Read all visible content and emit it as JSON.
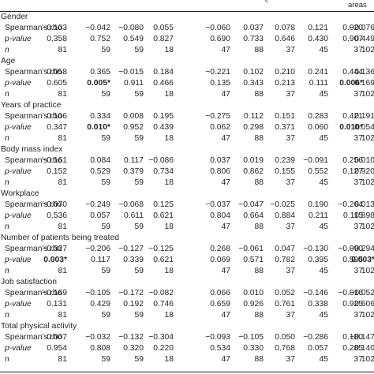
{
  "header": {
    "partial_fragment": "ε",
    "last_column_label": "areas"
  },
  "sections": [
    {
      "title": "Gender",
      "rows": [
        {
          "label": "Spearman's rho",
          "italic": false,
          "cells": [
            {
              "v": "−0.103"
            },
            {
              "v": "−0.042"
            },
            {
              "v": "−0.080"
            },
            {
              "v": "0.055"
            },
            {
              "v": "−0.060"
            },
            {
              "v": "0.037"
            },
            {
              "v": "0.078"
            },
            {
              "v": "0.121"
            },
            {
              "v": "0.020"
            },
            {
              "v": "−0.076"
            }
          ]
        },
        {
          "label": "p-value",
          "italic": true,
          "cells": [
            {
              "v": "0.358"
            },
            {
              "v": "0.752"
            },
            {
              "v": "0.549"
            },
            {
              "v": "0.827"
            },
            {
              "v": "0.690"
            },
            {
              "v": "0.733"
            },
            {
              "v": "0.646"
            },
            {
              "v": "0.430"
            },
            {
              "v": "0.907"
            },
            {
              "v": "0.449"
            }
          ]
        },
        {
          "label": "n",
          "italic": true,
          "cells": [
            {
              "v": "81"
            },
            {
              "v": "59"
            },
            {
              "v": "59"
            },
            {
              "v": "18"
            },
            {
              "v": "47"
            },
            {
              "v": "88"
            },
            {
              "v": "37"
            },
            {
              "v": "45"
            },
            {
              "v": "37"
            },
            {
              "v": "102"
            }
          ]
        }
      ]
    },
    {
      "title": "Age",
      "rows": [
        {
          "label": "Spearman's rho",
          "italic": false,
          "cells": [
            {
              "v": "0.058"
            },
            {
              "v": "0.365"
            },
            {
              "v": "−0.015"
            },
            {
              "v": "0.184"
            },
            {
              "v": "−0.221"
            },
            {
              "v": "0.102"
            },
            {
              "v": "0.210"
            },
            {
              "v": "0.241"
            },
            {
              "v": "0.444"
            },
            {
              "v": "0.136"
            }
          ]
        },
        {
          "label": "p-value",
          "italic": true,
          "cells": [
            {
              "v": "0.605"
            },
            {
              "v": "0.005*",
              "b": true
            },
            {
              "v": "0.911"
            },
            {
              "v": "0.466"
            },
            {
              "v": "0.135"
            },
            {
              "v": "0.343"
            },
            {
              "v": "0.213"
            },
            {
              "v": "0.111"
            },
            {
              "v": "0.006*",
              "b": true
            },
            {
              "v": "0.169"
            }
          ]
        },
        {
          "label": "n",
          "italic": true,
          "cells": [
            {
              "v": "81"
            },
            {
              "v": "59"
            },
            {
              "v": "59"
            },
            {
              "v": "18"
            },
            {
              "v": "47"
            },
            {
              "v": "88"
            },
            {
              "v": "37"
            },
            {
              "v": "45"
            },
            {
              "v": "37"
            },
            {
              "v": "102"
            }
          ]
        }
      ]
    },
    {
      "title": "Years of practice",
      "rows": [
        {
          "label": "Spearman's rho",
          "italic": false,
          "cells": [
            {
              "v": "0.106"
            },
            {
              "v": "0.334"
            },
            {
              "v": "0.008"
            },
            {
              "v": "0.195"
            },
            {
              "v": "−0.275"
            },
            {
              "v": "0.112"
            },
            {
              "v": "0.151"
            },
            {
              "v": "0.283"
            },
            {
              "v": "0.421"
            },
            {
              "v": "0.191"
            }
          ]
        },
        {
          "label": "p-value",
          "italic": true,
          "cells": [
            {
              "v": "0.347"
            },
            {
              "v": "0.010*",
              "b": true
            },
            {
              "v": "0.952"
            },
            {
              "v": "0.439"
            },
            {
              "v": "0.062"
            },
            {
              "v": "0.298"
            },
            {
              "v": "0.371"
            },
            {
              "v": "0.060"
            },
            {
              "v": "0.010*",
              "b": true
            },
            {
              "v": "0.054"
            }
          ]
        },
        {
          "label": "n",
          "italic": true,
          "cells": [
            {
              "v": "81"
            },
            {
              "v": "59"
            },
            {
              "v": "59"
            },
            {
              "v": "18"
            },
            {
              "v": "47"
            },
            {
              "v": "88"
            },
            {
              "v": "37"
            },
            {
              "v": "45"
            },
            {
              "v": "37"
            },
            {
              "v": "102"
            }
          ]
        }
      ]
    },
    {
      "title": "Body mass index",
      "rows": [
        {
          "label": "Spearman's rho",
          "italic": false,
          "cells": [
            {
              "v": "−0.161"
            },
            {
              "v": "0.084"
            },
            {
              "v": "0.117"
            },
            {
              "v": "−0.086"
            },
            {
              "v": "0.037"
            },
            {
              "v": "0.019"
            },
            {
              "v": "0.239"
            },
            {
              "v": "−0.091"
            },
            {
              "v": "0.256"
            },
            {
              "v": "0.010"
            }
          ]
        },
        {
          "label": "p-value",
          "italic": true,
          "cells": [
            {
              "v": "0.152"
            },
            {
              "v": "0.529"
            },
            {
              "v": "0.379"
            },
            {
              "v": "0.734"
            },
            {
              "v": "0.806"
            },
            {
              "v": "0.862"
            },
            {
              "v": "0.155"
            },
            {
              "v": "0.552"
            },
            {
              "v": "0.127"
            },
            {
              "v": "0.920"
            }
          ]
        },
        {
          "label": "n",
          "italic": true,
          "cells": [
            {
              "v": "81"
            },
            {
              "v": "59"
            },
            {
              "v": "59"
            },
            {
              "v": "18"
            },
            {
              "v": "47"
            },
            {
              "v": "88"
            },
            {
              "v": "37"
            },
            {
              "v": "45"
            },
            {
              "v": "37"
            },
            {
              "v": "102"
            }
          ]
        }
      ]
    },
    {
      "title": "Workplace",
      "rows": [
        {
          "label": "Spearman's rho",
          "italic": false,
          "cells": [
            {
              "v": "−0.070"
            },
            {
              "v": "−0.249"
            },
            {
              "v": "−0.068"
            },
            {
              "v": "0.125"
            },
            {
              "v": "−0.037"
            },
            {
              "v": "−0.047"
            },
            {
              "v": "−0.025"
            },
            {
              "v": "0.190"
            },
            {
              "v": "−0.264"
            },
            {
              "v": "0.013"
            }
          ]
        },
        {
          "label": "p-value",
          "italic": true,
          "cells": [
            {
              "v": "0.536"
            },
            {
              "v": "0.057"
            },
            {
              "v": "0.611"
            },
            {
              "v": "0.621"
            },
            {
              "v": "0.804"
            },
            {
              "v": "0.664"
            },
            {
              "v": "0.884"
            },
            {
              "v": "0.211"
            },
            {
              "v": "0.115"
            },
            {
              "v": "0.898"
            }
          ]
        },
        {
          "label": "n",
          "italic": true,
          "cells": [
            {
              "v": "81"
            },
            {
              "v": "59"
            },
            {
              "v": "59"
            },
            {
              "v": "18"
            },
            {
              "v": "47"
            },
            {
              "v": "88"
            },
            {
              "v": "37"
            },
            {
              "v": "45"
            },
            {
              "v": "37"
            },
            {
              "v": "102"
            }
          ]
        }
      ]
    },
    {
      "title": "Number of patients being treated",
      "rows": [
        {
          "label": "Spearman's rho",
          "italic": false,
          "cells": [
            {
              "v": "−0.327"
            },
            {
              "v": "−0.206"
            },
            {
              "v": "−0.127"
            },
            {
              "v": "−0.125"
            },
            {
              "v": "0.268"
            },
            {
              "v": "−0.061"
            },
            {
              "v": "0.047"
            },
            {
              "v": "−0.130"
            },
            {
              "v": "−0.090"
            },
            {
              "v": "−0.294"
            }
          ]
        },
        {
          "label": "p-value",
          "italic": true,
          "cells": [
            {
              "v": "0.003*",
              "b": true
            },
            {
              "v": "0.117"
            },
            {
              "v": "0.339"
            },
            {
              "v": "0.621"
            },
            {
              "v": "0.069"
            },
            {
              "v": "0.571"
            },
            {
              "v": "0.782"
            },
            {
              "v": "0.395"
            },
            {
              "v": "0.595"
            },
            {
              "v": "0.003*",
              "b": true
            }
          ]
        },
        {
          "label": "n",
          "italic": true,
          "cells": [
            {
              "v": "81"
            },
            {
              "v": "59"
            },
            {
              "v": "59"
            },
            {
              "v": "18"
            },
            {
              "v": "47"
            },
            {
              "v": "88"
            },
            {
              "v": "37"
            },
            {
              "v": "45"
            },
            {
              "v": "37"
            },
            {
              "v": "102"
            }
          ]
        }
      ]
    },
    {
      "title": "Job satisfaction",
      "rows": [
        {
          "label": "Spearman's rho",
          "italic": false,
          "cells": [
            {
              "v": "−0.169"
            },
            {
              "v": "−0.105"
            },
            {
              "v": "−0.172"
            },
            {
              "v": "−0.082"
            },
            {
              "v": "0.066"
            },
            {
              "v": "0.010"
            },
            {
              "v": "0.052"
            },
            {
              "v": "−0.146"
            },
            {
              "v": "−0.016"
            },
            {
              "v": "−0.052"
            }
          ]
        },
        {
          "label": "p-value",
          "italic": true,
          "cells": [
            {
              "v": "0.131"
            },
            {
              "v": "0.429"
            },
            {
              "v": "0.192"
            },
            {
              "v": "0.746"
            },
            {
              "v": "0.659"
            },
            {
              "v": "0.926"
            },
            {
              "v": "0.761"
            },
            {
              "v": "0.338"
            },
            {
              "v": "0.925"
            },
            {
              "v": "0.606"
            }
          ]
        },
        {
          "label": "n",
          "italic": true,
          "cells": [
            {
              "v": "81"
            },
            {
              "v": "59"
            },
            {
              "v": "59"
            },
            {
              "v": "18"
            },
            {
              "v": "47"
            },
            {
              "v": "88"
            },
            {
              "v": "37"
            },
            {
              "v": "45"
            },
            {
              "v": "37"
            },
            {
              "v": "102"
            }
          ]
        }
      ]
    },
    {
      "title": "Total physical activity",
      "rows": [
        {
          "label": "Spearman's rho",
          "italic": false,
          "cells": [
            {
              "v": "0.007"
            },
            {
              "v": "−0.032"
            },
            {
              "v": "−0.132"
            },
            {
              "v": "−0.304"
            },
            {
              "v": "−0.093"
            },
            {
              "v": "−0.105"
            },
            {
              "v": "0.050"
            },
            {
              "v": "−0.286"
            },
            {
              "v": "0.180"
            },
            {
              "v": "−0.147"
            }
          ]
        },
        {
          "label": "p-value",
          "italic": true,
          "cells": [
            {
              "v": "0.954"
            },
            {
              "v": "0.808"
            },
            {
              "v": "0.320"
            },
            {
              "v": "0.220"
            },
            {
              "v": "0.534"
            },
            {
              "v": "0.330"
            },
            {
              "v": "0.768"
            },
            {
              "v": "0.057"
            },
            {
              "v": "0.285"
            },
            {
              "v": "0.140"
            }
          ]
        },
        {
          "label": "n",
          "italic": true,
          "cells": [
            {
              "v": "81"
            },
            {
              "v": "59"
            },
            {
              "v": "59"
            },
            {
              "v": "18"
            },
            {
              "v": "47"
            },
            {
              "v": "88"
            },
            {
              "v": "37"
            },
            {
              "v": "45"
            },
            {
              "v": "37"
            },
            {
              "v": "102"
            }
          ]
        }
      ]
    }
  ]
}
